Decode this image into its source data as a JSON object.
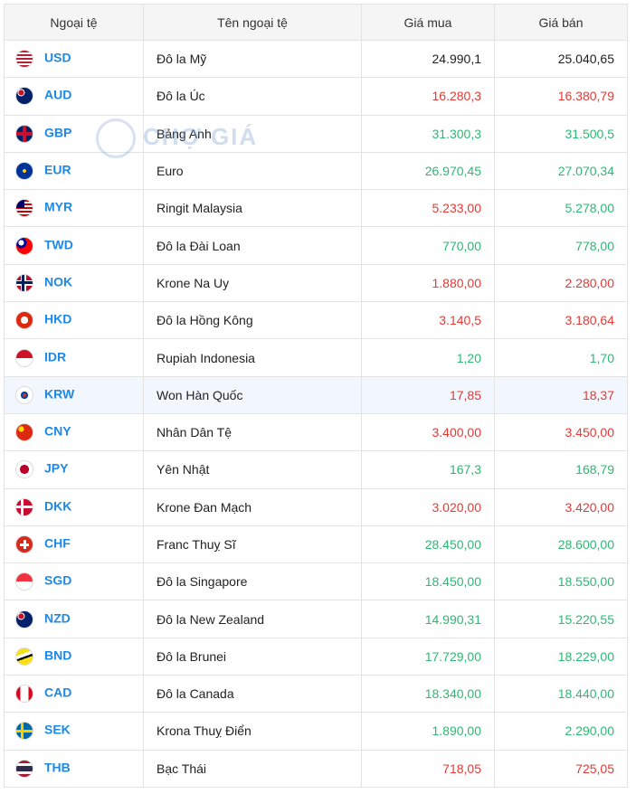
{
  "watermark": "CHỢ GIÁ",
  "table": {
    "header": [
      "Ngoại tệ",
      "Tên ngoại tệ",
      "Giá mua",
      "Giá bán"
    ],
    "rows": [
      {
        "code": "USD",
        "name": "Đô la Mỹ",
        "buy": "24.990,1",
        "sell": "25.040,65",
        "buy_color": "#222222",
        "sell_color": "#222222"
      },
      {
        "code": "AUD",
        "name": "Đô la Úc",
        "buy": "16.280,3",
        "sell": "16.380,79",
        "buy_color": "#e53935",
        "sell_color": "#e53935"
      },
      {
        "code": "GBP",
        "name": "Bảng Anh",
        "buy": "31.300,3",
        "sell": "31.500,5",
        "buy_color": "#2eb872",
        "sell_color": "#2eb872"
      },
      {
        "code": "EUR",
        "name": "Euro",
        "buy": "26.970,45",
        "sell": "27.070,34",
        "buy_color": "#2eb872",
        "sell_color": "#2eb872"
      },
      {
        "code": "MYR",
        "name": "Ringit Malaysia",
        "buy": "5.233,00",
        "sell": "5.278,00",
        "buy_color": "#e53935",
        "sell_color": "#2eb872"
      },
      {
        "code": "TWD",
        "name": "Đô la Đài Loan",
        "buy": "770,00",
        "sell": "778,00",
        "buy_color": "#2eb872",
        "sell_color": "#2eb872"
      },
      {
        "code": "NOK",
        "name": "Krone Na Uy",
        "buy": "1.880,00",
        "sell": "2.280,00",
        "buy_color": "#e53935",
        "sell_color": "#e53935"
      },
      {
        "code": "HKD",
        "name": "Đô la Hồng Kông",
        "buy": "3.140,5",
        "sell": "3.180,64",
        "buy_color": "#e53935",
        "sell_color": "#e53935"
      },
      {
        "code": "IDR",
        "name": "Rupiah Indonesia",
        "buy": "1,20",
        "sell": "1,70",
        "buy_color": "#2eb872",
        "sell_color": "#2eb872"
      },
      {
        "code": "KRW",
        "name": "Won Hàn Quốc",
        "buy": "17,85",
        "sell": "18,37",
        "buy_color": "#e53935",
        "sell_color": "#e53935"
      },
      {
        "code": "CNY",
        "name": "Nhân Dân Tệ",
        "buy": "3.400,00",
        "sell": "3.450,00",
        "buy_color": "#e53935",
        "sell_color": "#e53935"
      },
      {
        "code": "JPY",
        "name": "Yên Nhật",
        "buy": "167,3",
        "sell": "168,79",
        "buy_color": "#2eb872",
        "sell_color": "#2eb872"
      },
      {
        "code": "DKK",
        "name": "Krone Đan Mạch",
        "buy": "3.020,00",
        "sell": "3.420,00",
        "buy_color": "#e53935",
        "sell_color": "#e53935"
      },
      {
        "code": "CHF",
        "name": "Franc Thuỵ Sĩ",
        "buy": "28.450,00",
        "sell": "28.600,00",
        "buy_color": "#2eb872",
        "sell_color": "#2eb872"
      },
      {
        "code": "SGD",
        "name": "Đô la Singapore",
        "buy": "18.450,00",
        "sell": "18.550,00",
        "buy_color": "#2eb872",
        "sell_color": "#2eb872"
      },
      {
        "code": "NZD",
        "name": "Đô la New Zealand",
        "buy": "14.990,31",
        "sell": "15.220,55",
        "buy_color": "#2eb872",
        "sell_color": "#2eb872"
      },
      {
        "code": "BND",
        "name": "Đô la Brunei",
        "buy": "17.729,00",
        "sell": "18.229,00",
        "buy_color": "#2eb872",
        "sell_color": "#2eb872"
      },
      {
        "code": "CAD",
        "name": "Đô la Canada",
        "buy": "18.340,00",
        "sell": "18.440,00",
        "buy_color": "#2eb872",
        "sell_color": "#2eb872"
      },
      {
        "code": "SEK",
        "name": "Krona Thuỵ Điển",
        "buy": "1.890,00",
        "sell": "2.290,00",
        "buy_color": "#2eb872",
        "sell_color": "#2eb872"
      },
      {
        "code": "THB",
        "name": "Bạc Thái",
        "buy": "718,05",
        "sell": "725,05",
        "buy_color": "#e53935",
        "sell_color": "#e53935"
      }
    ]
  }
}
